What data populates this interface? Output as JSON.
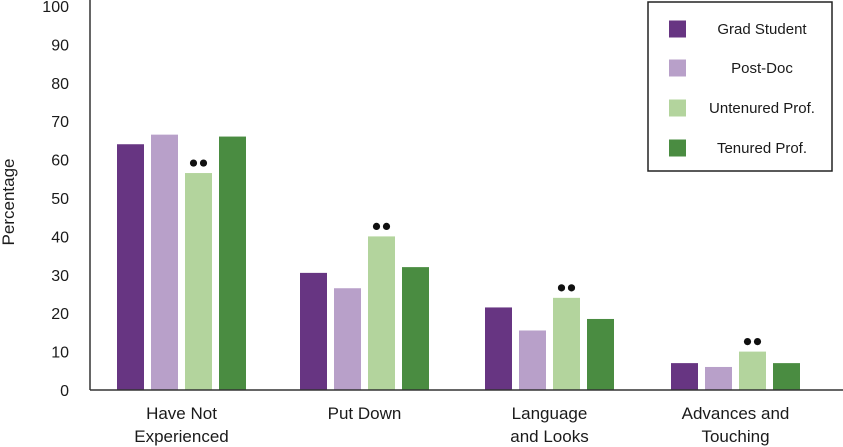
{
  "chart_data": {
    "type": "bar",
    "ylabel": "Percentage",
    "xlabel": "",
    "ylim": [
      0,
      100
    ],
    "yticks": [
      0,
      10,
      20,
      30,
      40,
      50,
      60,
      70,
      80,
      90,
      100
    ],
    "categories": [
      [
        "Have Not",
        "Experienced"
      ],
      [
        "Put Down"
      ],
      [
        "Language",
        "and Looks"
      ],
      [
        "Advances and",
        "Touching"
      ]
    ],
    "series": [
      {
        "name": "Grad Student",
        "color": "#673582",
        "values": [
          64,
          30.5,
          21.5,
          7
        ]
      },
      {
        "name": "Post-Doc",
        "color": "#b8a0c9",
        "values": [
          66.5,
          26.5,
          15.5,
          6
        ]
      },
      {
        "name": "Untenured Prof.",
        "color": "#b3d49d",
        "values": [
          56.5,
          40,
          24,
          10
        ]
      },
      {
        "name": "Tenured Prof.",
        "color": "#4a8c41",
        "values": [
          66,
          32,
          18.5,
          7
        ]
      }
    ],
    "annotations": [
      {
        "series": "Untenured Prof.",
        "category_index": 0,
        "marker": "••"
      },
      {
        "series": "Untenured Prof.",
        "category_index": 1,
        "marker": "••"
      },
      {
        "series": "Untenured Prof.",
        "category_index": 2,
        "marker": "••"
      },
      {
        "series": "Untenured Prof.",
        "category_index": 3,
        "marker": "••"
      }
    ],
    "legend": {
      "placement": "top-right"
    },
    "grid": false
  }
}
